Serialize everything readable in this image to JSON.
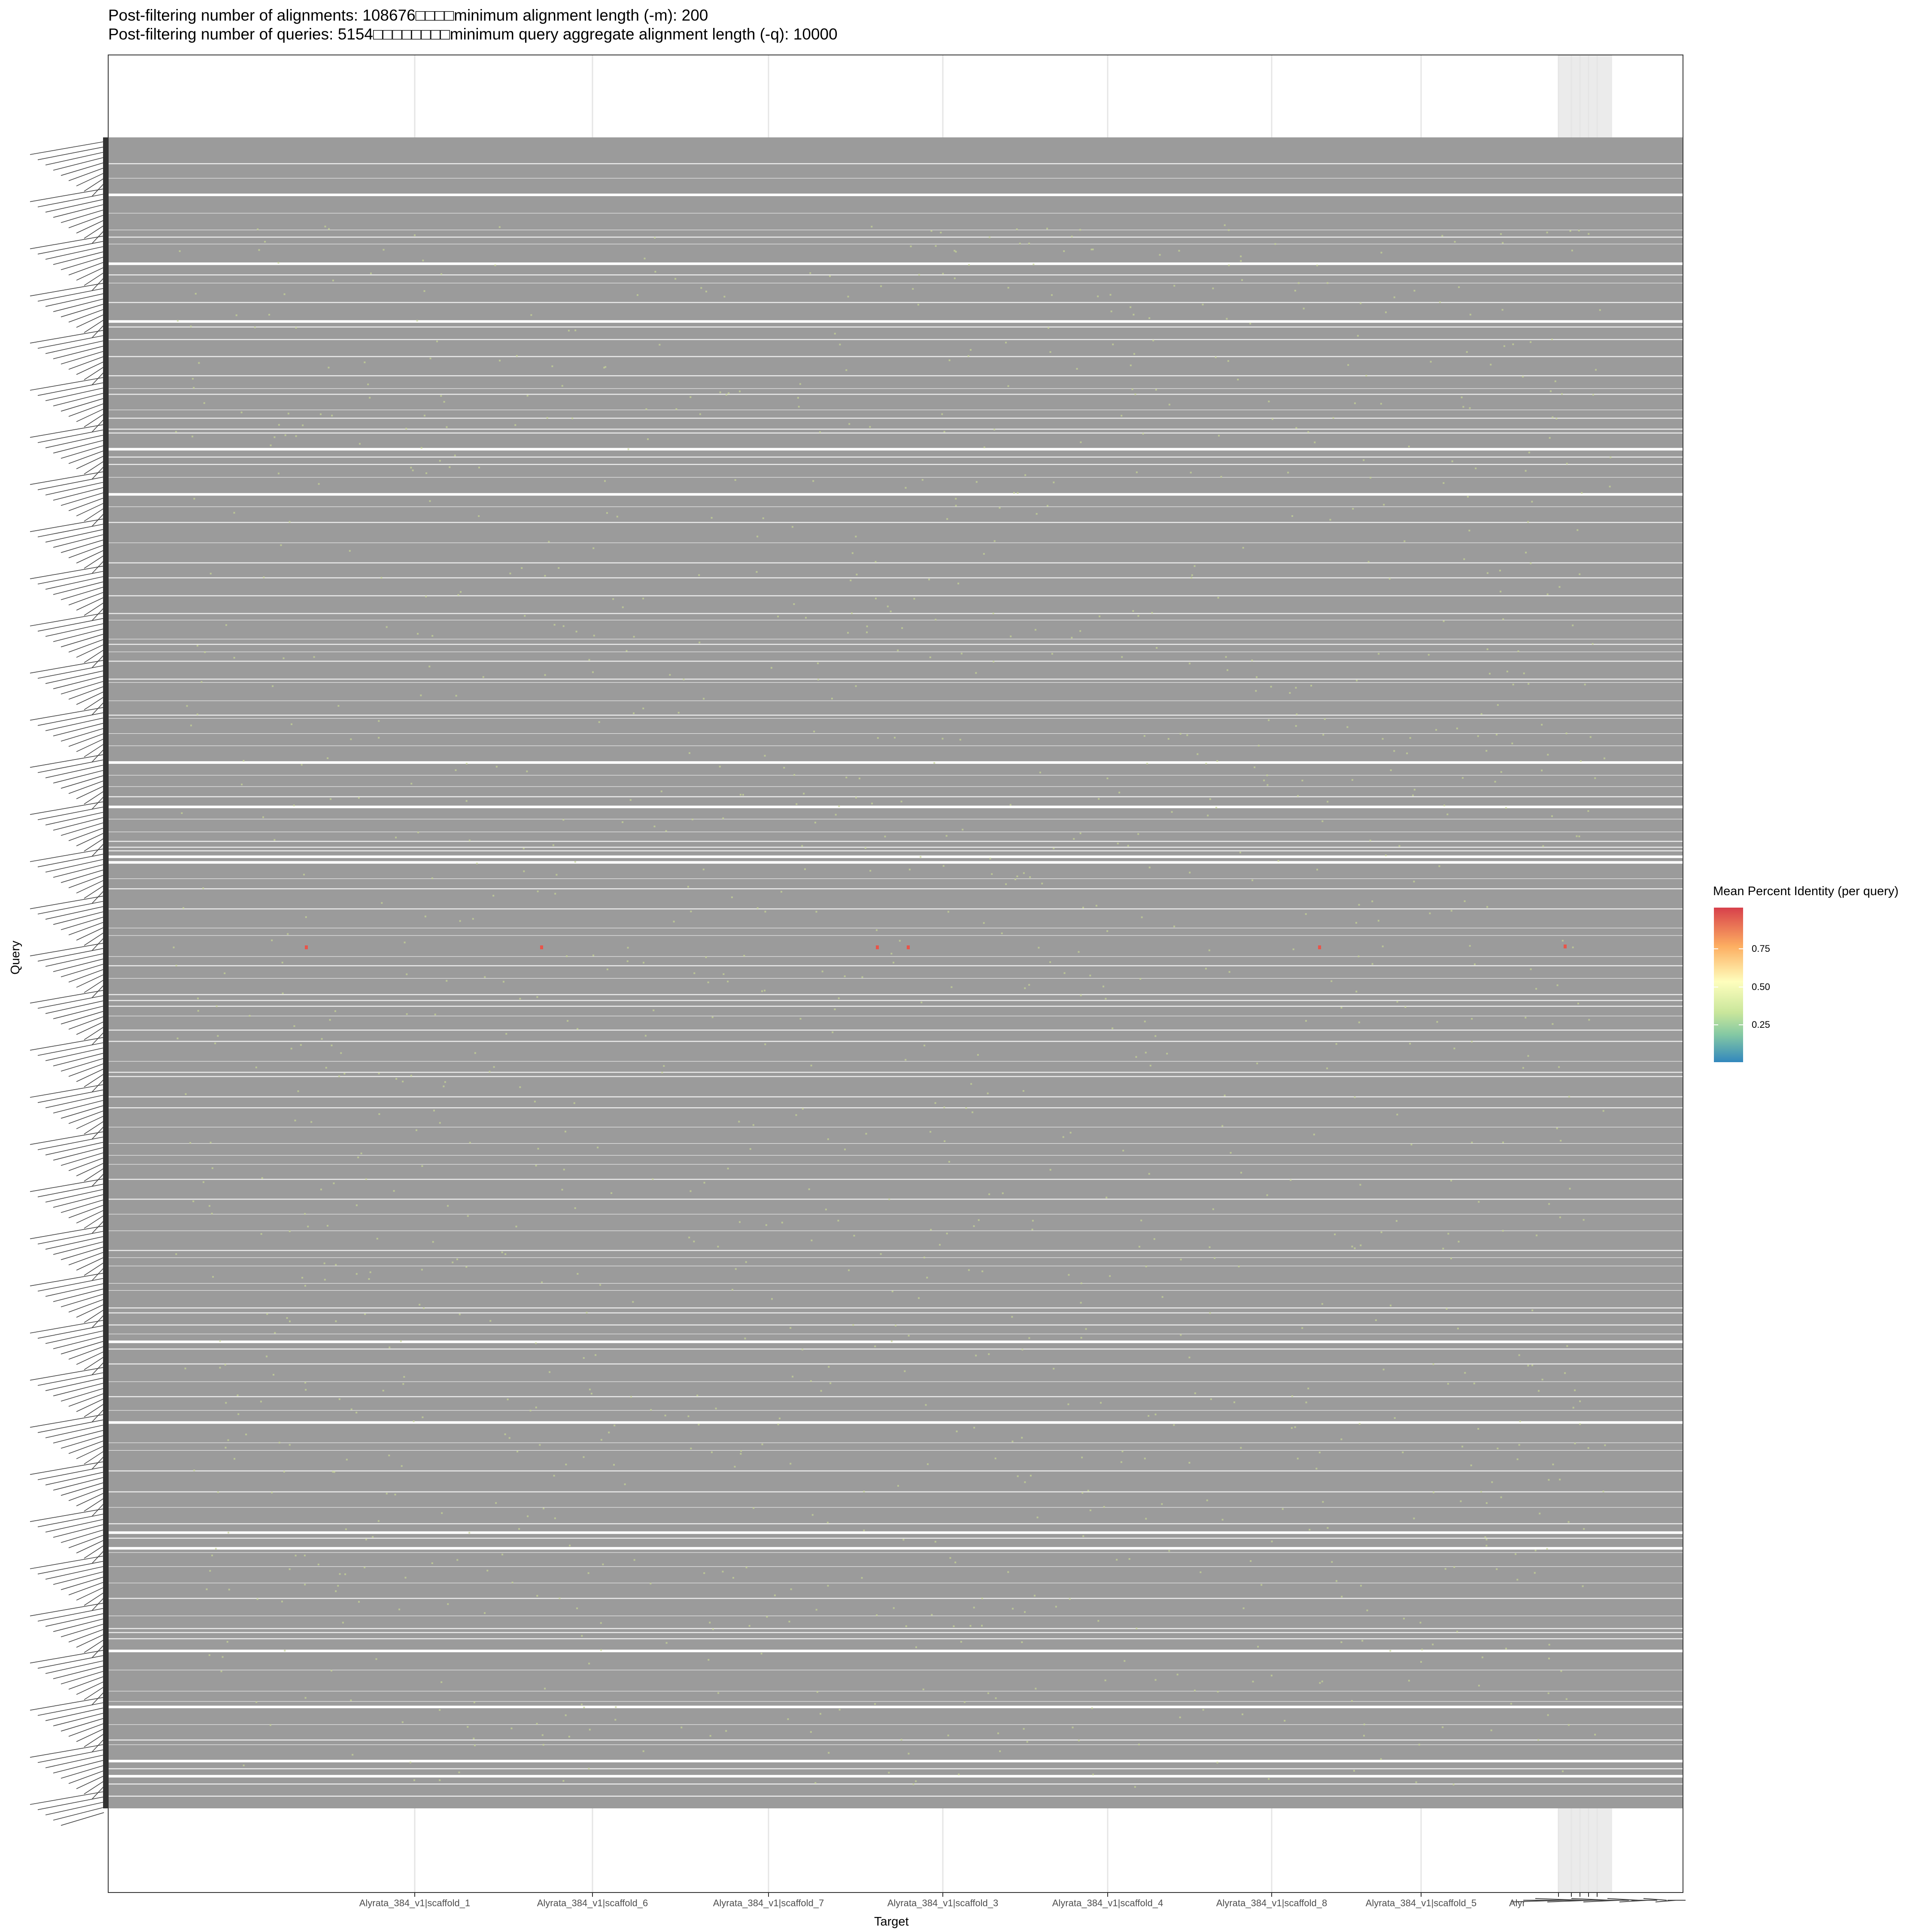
{
  "title_lines": [
    "Post-filtering number of alignments: 108676□□□□minimum alignment length (-m): 200",
    "Post-filtering number of queries: 5154□□□□□□□□minimum query aggregate alignment length (-q): 10000"
  ],
  "colors": {
    "band": "#9b9b9b",
    "background": "#ffffff",
    "gridline": "#e5e5e5",
    "panel_border": "#333333",
    "shaded_column": "#ebebeb",
    "points_low": "#c8d696",
    "points_high": "#e8554a"
  },
  "chart_data": {
    "type": "scatter",
    "title": "Post-filtering number of alignments: 108676□□□□minimum alignment length (-m): 200 / Post-filtering number of queries: 5154□□□□□□□□minimum query aggregate alignment length (-q): 10000",
    "xlabel": "Target",
    "ylabel": "Query",
    "x_tick_labels": [
      "Alyrata_384_v1|scaffold_1",
      "Alyrata_384_v1|scaffold_6",
      "Alyrata_384_v1|scaffold_7",
      "Alyrata_384_v1|scaffold_3",
      "Alyrata_384_v1|scaffold_4",
      "Alyrata_384_v1|scaffold_8",
      "Alyrata_384_v1|scaffold_5",
      "Alyr"
    ],
    "legend": {
      "title": "Mean Percent Identity (per query)",
      "ticks": [
        0.75,
        0.5,
        0.25
      ],
      "tick_labels": [
        "0.75",
        "0.50",
        "0.25"
      ],
      "range": [
        0.0,
        1.0
      ],
      "palette": "Spectral",
      "placement": "right"
    },
    "grid": true,
    "high_identity_points": [
      {
        "target": "Alyrata_384_v1|scaffold_1",
        "identity": 0.95
      },
      {
        "target": "Alyrata_384_v1|scaffold_6",
        "identity": 0.95
      },
      {
        "target": "Alyrata_384_v1|scaffold_3",
        "identity": 0.95
      },
      {
        "target": "Alyrata_384_v1|scaffold_8",
        "identity": 0.95
      },
      {
        "target": "Alyrata_384_v1|scaffold_5",
        "identity": 0.95
      }
    ],
    "query_count": 5154,
    "alignment_count": 108676
  }
}
